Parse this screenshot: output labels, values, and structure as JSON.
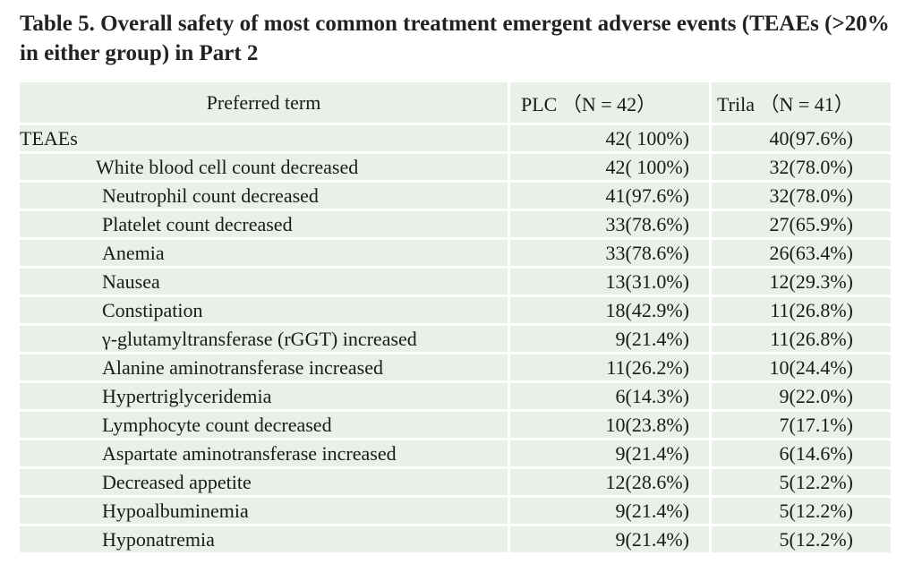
{
  "title": "Table 5. Overall safety of most common treatment emergent adverse events (TEAEs  (>20% in either group) in Part 2",
  "header": {
    "term": "Preferred term",
    "plc": "PLC （N = 42）",
    "trila": "Trila （N = 41）"
  },
  "rows": [
    {
      "term": "TEAEs",
      "plc": "42( 100%)",
      "trila": "40(97.6%)"
    },
    {
      "term": "White blood cell count decreased",
      "plc": "42( 100%)",
      "trila": "32(78.0%)"
    },
    {
      "term": "Neutrophil count decreased",
      "plc": "41(97.6%)",
      "trila": "32(78.0%)"
    },
    {
      "term": "Platelet count decreased",
      "plc": "33(78.6%)",
      "trila": "27(65.9%)"
    },
    {
      "term": "Anemia",
      "plc": "33(78.6%)",
      "trila": "26(63.4%)"
    },
    {
      "term": "Nausea",
      "plc": "13(31.0%)",
      "trila": "12(29.3%)"
    },
    {
      "term": "Constipation",
      "plc": "18(42.9%)",
      "trila": "11(26.8%)"
    },
    {
      "term": "γ-glutamyltransferase (rGGT) increased",
      "plc": "9(21.4%)",
      "trila": "11(26.8%)"
    },
    {
      "term": "Alanine aminotransferase increased",
      "plc": "11(26.2%)",
      "trila": "10(24.4%)"
    },
    {
      "term": "Hypertriglyceridemia",
      "plc": "6(14.3%)",
      "trila": "9(22.0%)"
    },
    {
      "term": "Lymphocyte count decreased",
      "plc": "10(23.8%)",
      "trila": "7(17.1%)"
    },
    {
      "term": "Aspartate aminotransferase increased",
      "plc": "9(21.4%)",
      "trila": "6(14.6%)"
    },
    {
      "term": "Decreased appetite",
      "plc": "12(28.6%)",
      "trila": "5(12.2%)"
    },
    {
      "term": "Hypoalbuminemia",
      "plc": "9(21.4%)",
      "trila": "5(12.2%)"
    },
    {
      "term": "Hyponatremia",
      "plc": "9(21.4%)",
      "trila": "5(12.2%)"
    }
  ]
}
